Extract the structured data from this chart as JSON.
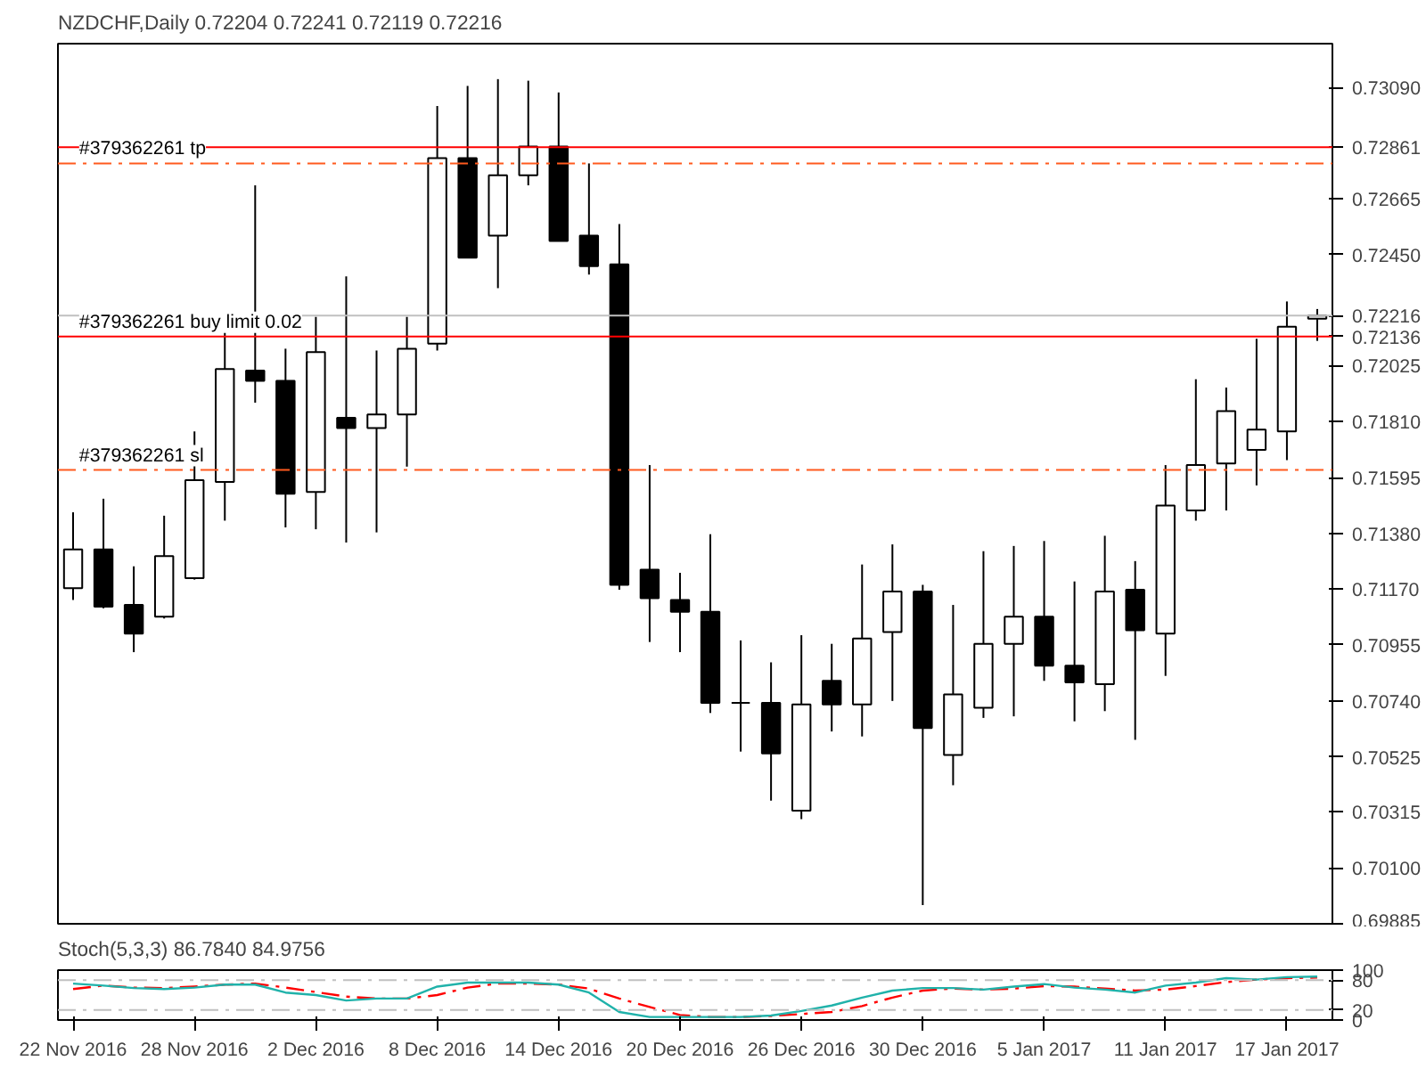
{
  "chart_data": [
    {
      "type": "candlestick",
      "title": "NZDCHF,Daily  0.72204 0.72241 0.72119 0.72216",
      "categories": [
        null,
        null,
        null,
        null,
        null,
        null,
        null,
        null,
        null,
        null,
        null,
        null,
        null,
        null,
        null,
        null,
        null,
        null,
        null,
        null,
        null,
        null,
        null,
        null,
        null,
        null,
        null,
        null,
        null,
        null,
        null,
        null,
        null,
        null,
        null,
        null,
        null,
        null,
        null,
        null,
        null,
        null
      ],
      "ohlc": [
        [
          0.71171,
          0.71462,
          0.71126,
          0.7132
        ],
        [
          0.7132,
          0.71514,
          0.71094,
          0.711
        ],
        [
          0.71107,
          0.71255,
          0.70926,
          0.70997
        ],
        [
          0.71062,
          0.71449,
          0.71055,
          0.71294
        ],
        [
          0.7121,
          0.71772,
          0.71204,
          0.71585
        ],
        [
          0.71578,
          0.7216,
          0.7143,
          0.72011
        ],
        [
          0.72005,
          0.72715,
          0.71882,
          0.71966
        ],
        [
          0.71966,
          0.72089,
          0.71404,
          0.71533
        ],
        [
          0.7154,
          0.72211,
          0.71397,
          0.72076
        ],
        [
          0.71824,
          0.72366,
          0.71346,
          0.71785
        ],
        [
          0.71785,
          0.72082,
          0.71385,
          0.71837
        ],
        [
          0.71837,
          0.72211,
          0.71637,
          0.72089
        ],
        [
          0.72108,
          0.73019,
          0.72082,
          0.72819
        ],
        [
          0.72819,
          0.73096,
          0.72438,
          0.72438
        ],
        [
          0.72522,
          0.73122,
          0.72321,
          0.72754
        ],
        [
          0.72754,
          0.73116,
          0.72715,
          0.72864
        ],
        [
          0.72864,
          0.73071,
          0.72502,
          0.72502
        ],
        [
          0.72522,
          0.72799,
          0.72373,
          0.72405
        ],
        [
          0.72412,
          0.72567,
          0.71165,
          0.71184
        ],
        [
          0.71242,
          0.71643,
          0.70965,
          0.71133
        ],
        [
          0.71126,
          0.7123,
          0.70926,
          0.71081
        ],
        [
          0.71081,
          0.71378,
          0.70693,
          0.70732
        ],
        [
          0.70732,
          0.70971,
          0.70545,
          0.70732
        ],
        [
          0.70732,
          0.70887,
          0.70357,
          0.70538
        ],
        [
          0.70319,
          0.70991,
          0.70286,
          0.70726
        ],
        [
          0.70816,
          0.70958,
          0.70622,
          0.70726
        ],
        [
          0.70726,
          0.71262,
          0.70603,
          0.70978
        ],
        [
          0.71003,
          0.71339,
          0.70739,
          0.71158
        ],
        [
          0.71158,
          0.71184,
          0.69957,
          0.70635
        ],
        [
          0.70532,
          0.71107,
          0.70416,
          0.70764
        ],
        [
          0.70713,
          0.71313,
          0.70674,
          0.70958
        ],
        [
          0.70958,
          0.71333,
          0.7068,
          0.71062
        ],
        [
          0.71062,
          0.71352,
          0.70816,
          0.70874
        ],
        [
          0.70874,
          0.71197,
          0.70661,
          0.7081
        ],
        [
          0.70803,
          0.71372,
          0.707,
          0.71158
        ],
        [
          0.71165,
          0.71275,
          0.7059,
          0.7101
        ],
        [
          0.70997,
          0.71643,
          0.70835,
          0.71488
        ],
        [
          0.71469,
          0.71972,
          0.7143,
          0.71643
        ],
        [
          0.71649,
          0.7194,
          0.71469,
          0.7185
        ],
        [
          0.71701,
          0.72127,
          0.71565,
          0.71779
        ],
        [
          0.71772,
          0.7227,
          0.71662,
          0.72173
        ],
        [
          0.72204,
          0.72241,
          0.72119,
          0.72216
        ]
      ],
      "ylim": [
        0.69885,
        0.73258
      ],
      "yticks": [
        {
          "value": 0.7309,
          "label": "0.73090"
        },
        {
          "value": 0.72861,
          "label": "0.72861"
        },
        {
          "value": 0.72665,
          "label": "0.72665"
        },
        {
          "value": 0.7245,
          "label": "0.72450"
        },
        {
          "value": 0.72216,
          "label": "0.72216"
        },
        {
          "value": 0.72136,
          "label": "0.72136"
        },
        {
          "value": 0.72025,
          "label": "0.72025"
        },
        {
          "value": 0.7181,
          "label": "0.71810"
        },
        {
          "value": 0.71595,
          "label": "0.71595"
        },
        {
          "value": 0.7138,
          "label": "0.71380"
        },
        {
          "value": 0.7117,
          "label": "0.71170"
        },
        {
          "value": 0.70955,
          "label": "0.70955"
        },
        {
          "value": 0.7074,
          "label": "0.70740"
        },
        {
          "value": 0.70525,
          "label": "0.70525"
        },
        {
          "value": 0.70315,
          "label": "0.70315"
        },
        {
          "value": 0.701,
          "label": "0.70100"
        },
        {
          "value": 0.69885,
          "label": "0.69885"
        }
      ],
      "ref_lines": [
        {
          "axis": "y",
          "value": 0.72861,
          "color": "#ff0000",
          "line_style": "solid"
        },
        {
          "axis": "y",
          "value": 0.72799,
          "label": "#379362261 tp",
          "color": "#ff5a1e",
          "line_style": "dashed"
        },
        {
          "axis": "y",
          "value": 0.72216,
          "color": "#c0c0c0",
          "line_style": "solid"
        },
        {
          "axis": "y",
          "value": 0.72136,
          "label": "#379362261 buy limit 0.02",
          "color": "#ff0000",
          "line_style": "solid"
        },
        {
          "axis": "y",
          "value": 0.71624,
          "label": "#379362261 sl",
          "color": "#ff5a1e",
          "line_style": "dashed"
        }
      ],
      "tick_labels": "y"
    },
    {
      "type": "line",
      "title": "Stoch(5,3,3) 86.7840 84.9756",
      "categories": [
        "22 Nov 2016",
        null,
        null,
        null,
        "28 Nov 2016",
        null,
        null,
        null,
        "2 Dec 2016",
        null,
        null,
        null,
        "8 Dec 2016",
        null,
        null,
        null,
        "14 Dec 2016",
        null,
        null,
        null,
        "20 Dec 2016",
        null,
        null,
        null,
        "26 Dec 2016",
        null,
        null,
        null,
        "30 Dec 2016",
        null,
        null,
        null,
        "5 Jan 2017",
        null,
        null,
        null,
        "11 Jan 2017",
        null,
        null,
        null,
        "17 Jan 2017",
        null
      ],
      "series": [
        {
          "color": "#20b2aa",
          "line_style": "solid",
          "values": [
            73,
            69,
            64,
            62,
            65,
            71,
            71,
            55,
            50,
            39,
            43,
            43,
            67,
            75,
            75,
            75,
            71,
            55,
            16,
            6,
            6,
            6,
            6,
            9,
            18,
            29,
            45,
            59,
            64,
            64,
            61,
            67,
            72,
            65,
            61,
            55,
            69,
            75,
            84,
            81,
            86,
            87
          ]
        },
        {
          "color": "#ff0000",
          "line_style": "dashed",
          "values": [
            62,
            69,
            65,
            64,
            67,
            71,
            73,
            65,
            56,
            47,
            43,
            43,
            50,
            65,
            73,
            73,
            71,
            63,
            43,
            26,
            10,
            6,
            6,
            8,
            12,
            16,
            28,
            45,
            59,
            63,
            61,
            63,
            68,
            67,
            63,
            59,
            61,
            68,
            76,
            81,
            84,
            85
          ]
        }
      ],
      "ylim": [
        0,
        100
      ],
      "yticks": [
        0,
        20,
        80,
        100
      ],
      "ref_lines": [
        {
          "axis": "y",
          "value": 20,
          "color": "#c0c0c0",
          "line_style": "dashed"
        },
        {
          "axis": "y",
          "value": 80,
          "color": "#c0c0c0",
          "line_style": "dashed"
        }
      ]
    }
  ]
}
